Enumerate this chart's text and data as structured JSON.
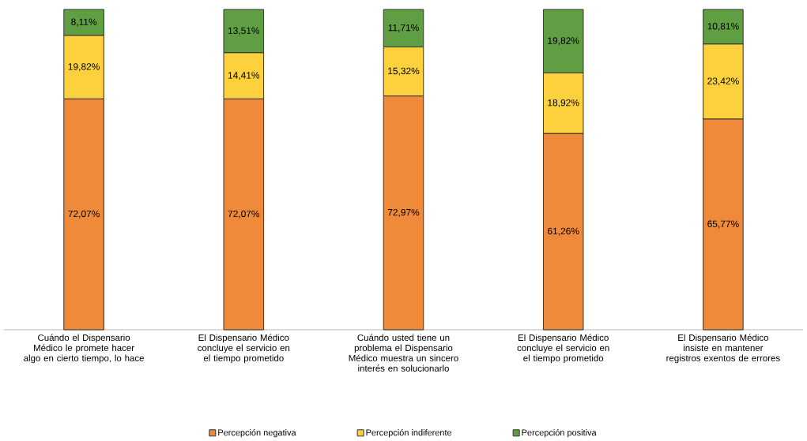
{
  "chart_data": {
    "type": "bar",
    "stacked": true,
    "categories": [
      "Cuándo el Dispensario Médico le promete hacer algo en cierto tiempo, lo hace",
      "El Dispensario Médico concluye el servicio en el tiempo prometido",
      "Cuándo usted tiene un problema el Dispensario Médico muestra un sincero interés en solucionarlo",
      "El Dispensario Médico concluye el servicio en el tiempo prometido",
      "El Dispensario Médico insiste en mantener registros exentos de errores"
    ],
    "series": [
      {
        "name": "Percepción negativa",
        "color": "#ee8a3a",
        "values": [
          72.07,
          72.07,
          72.97,
          61.26,
          65.77
        ],
        "value_labels": [
          "72,07%",
          "72,07%",
          "72,97%",
          "61,26%",
          "65,77%"
        ]
      },
      {
        "name": "Percepción indiferente",
        "color": "#fdd03e",
        "values": [
          19.82,
          14.41,
          15.32,
          18.92,
          23.42
        ],
        "value_labels": [
          "19,82%",
          "14,41%",
          "15,32%",
          "18,92%",
          "23,42%"
        ]
      },
      {
        "name": "Percepción positiva",
        "color": "#5f9e43",
        "values": [
          8.11,
          13.51,
          11.71,
          19.82,
          10.81
        ],
        "value_labels": [
          "8,11%",
          "13,51%",
          "11,71%",
          "19,82%",
          "10,81%"
        ]
      }
    ],
    "legend": "bottom"
  }
}
